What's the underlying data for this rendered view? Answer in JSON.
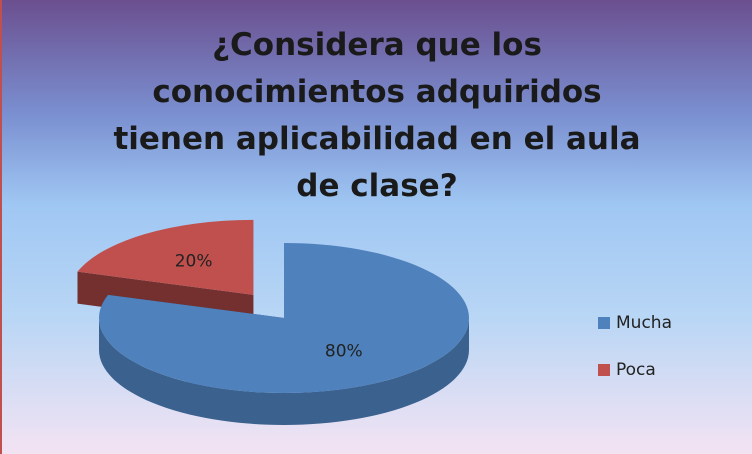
{
  "chart_data": {
    "type": "pie",
    "title": "¿Considera que los conocimientos adquiridos tienen aplicabilidad en el aula de clase?",
    "categories": [
      "Mucha",
      "Poca"
    ],
    "values": [
      80,
      20
    ],
    "value_labels": [
      "80%",
      "20%"
    ],
    "colors": [
      "#4f81bd",
      "#c0504d"
    ],
    "exploded": [
      false,
      true
    ],
    "legend": "right"
  }
}
